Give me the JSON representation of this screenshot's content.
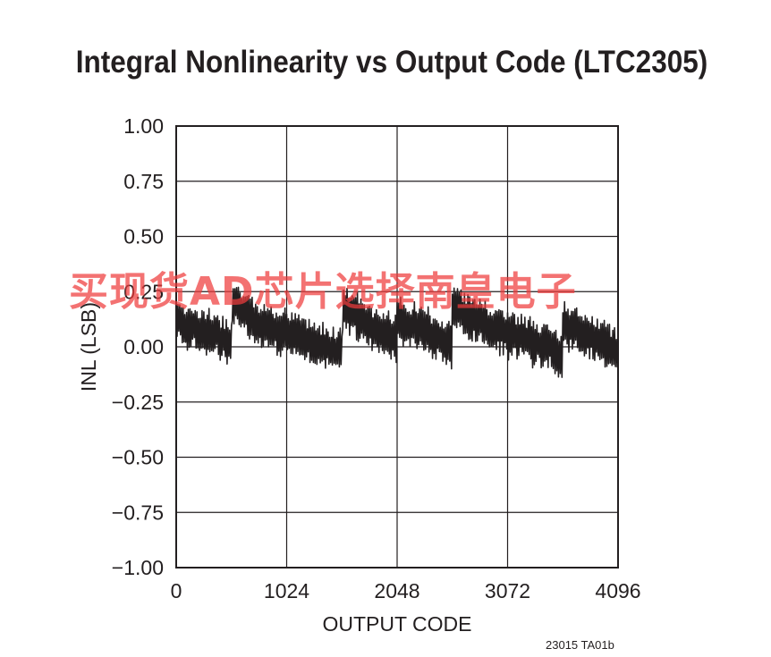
{
  "chart_data": {
    "type": "line",
    "title": "Integral Nonlinearity vs Output Code (LTC2305)",
    "xlabel": "OUTPUT CODE",
    "ylabel": "INL (LSB)",
    "xlim": [
      0,
      4096
    ],
    "ylim": [
      -1.0,
      1.0
    ],
    "x_ticks": [
      0,
      1024,
      2048,
      3072,
      4096
    ],
    "x_tick_labels": [
      "0",
      "1024",
      "2048",
      "3072",
      "4096"
    ],
    "y_ticks": [
      1.0,
      0.75,
      0.5,
      0.25,
      0.0,
      -0.25,
      -0.5,
      -0.75,
      -1.0
    ],
    "y_tick_labels": [
      "1.00",
      "0.75",
      "0.50",
      "0.25",
      "0.00",
      "−0.25",
      "−0.50",
      "−0.75",
      "−1.00"
    ],
    "grid": true,
    "series": [
      {
        "color": "#231f20",
        "x": [
          0,
          128,
          256,
          384,
          512,
          520,
          640,
          768,
          896,
          1024,
          1152,
          1280,
          1408,
          1536,
          1544,
          1664,
          1792,
          1920,
          2040,
          2048,
          2176,
          2304,
          2432,
          2552,
          2560,
          2688,
          2816,
          2944,
          3072,
          3200,
          3328,
          3456,
          3576,
          3584,
          3712,
          3840,
          3968,
          4096
        ],
        "y": [
          0.12,
          0.09,
          0.07,
          0.05,
          0.02,
          0.2,
          0.15,
          0.1,
          0.08,
          0.06,
          0.04,
          0.02,
          0.0,
          -0.02,
          0.18,
          0.14,
          0.1,
          0.06,
          0.03,
          0.13,
          0.1,
          0.07,
          0.04,
          0.01,
          0.18,
          0.14,
          0.11,
          0.08,
          0.06,
          0.04,
          0.02,
          0.0,
          -0.05,
          0.1,
          0.07,
          0.05,
          0.02,
          -0.02
        ],
        "ripple_amplitude": 0.1
      }
    ]
  },
  "footer": {
    "figure_code": "23015 TA01b"
  },
  "overlay": {
    "watermark": "买现货AD芯片选择南皇电子"
  }
}
